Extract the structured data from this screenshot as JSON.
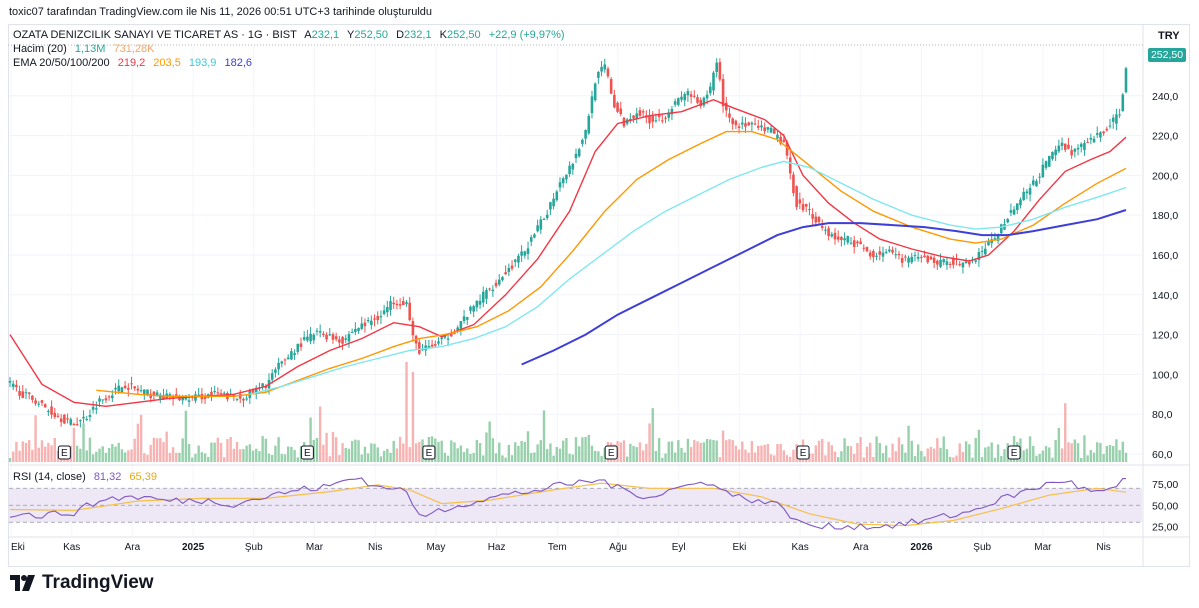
{
  "header": {
    "text": "toxic07 tarafından TradingView.com ile Nis 11, 2026 00:51 UTC+3 tarihinde oluşturuldu"
  },
  "legend": {
    "symbol": "OZATA DENIZCILIK SANAYI VE TICARET AS · 1G · BIST",
    "ohlc": {
      "o_label": "A",
      "o": "232,1",
      "h_label": "Y",
      "h": "252,50",
      "l_label": "D",
      "l": "232,1",
      "c_label": "K",
      "c": "252,50",
      "chg": "+22,9 (+9,97%)"
    },
    "volume": {
      "label": "Hacim (20)",
      "value": "1,13M",
      "ma": "731,28K"
    },
    "ema": {
      "label": "EMA 20/50/100/200",
      "v20": "219,2",
      "v50": "203,5",
      "v100": "193,9",
      "v200": "182,6"
    },
    "rsi": {
      "label": "RSI (14, close)",
      "value": "81,32",
      "ma": "65,39"
    }
  },
  "currency": "TRY",
  "last_price_tag": "252,50",
  "brand": "TradingView",
  "colors": {
    "up": "#26a69a",
    "down": "#ef5350",
    "volume_up": "#86c89e",
    "volume_down": "#f4a6a4",
    "ema20": "#f23645",
    "ema50": "#ff9800",
    "ema100": "#7fe7f0",
    "ema200": "#3e3ed8",
    "rsi_line": "#7e57c2",
    "rsi_ma": "#f7c04a",
    "rsi_band": "#ede7f6"
  },
  "chart_data": {
    "type": "candlestick",
    "title": "OZATA DENIZCILIK SANAYI VE TICARET AS · 1G · BIST",
    "price_axis": {
      "ticks": [
        "60,0",
        "80,0",
        "100,0",
        "120,0",
        "140,0",
        "160,0",
        "180,0",
        "200,0",
        "220,0",
        "240,0"
      ],
      "range": [
        56,
        265
      ]
    },
    "rsi_axis": {
      "ticks": [
        "25,00",
        "50,00",
        "75,00"
      ],
      "range": [
        15,
        95
      ],
      "band": [
        30,
        70
      ]
    },
    "time_axis": [
      "Eki",
      "Kas",
      "Ara",
      "2025",
      "Şub",
      "Mar",
      "Nis",
      "May",
      "Haz",
      "Tem",
      "Ağu",
      "Eyl",
      "Eki",
      "Kas",
      "Ara",
      "2026",
      "Şub",
      "Mar",
      "Nis"
    ],
    "earnings_markers": [
      "E",
      "E",
      "E",
      "E",
      "E",
      "E"
    ],
    "close_series": [
      [
        0,
        95
      ],
      [
        4,
        90
      ],
      [
        8,
        87
      ],
      [
        12,
        82
      ],
      [
        16,
        78
      ],
      [
        20,
        75
      ],
      [
        24,
        79
      ],
      [
        28,
        87
      ],
      [
        32,
        91
      ],
      [
        36,
        95
      ],
      [
        40,
        92
      ],
      [
        44,
        90
      ],
      [
        48,
        89
      ],
      [
        52,
        88
      ],
      [
        56,
        88
      ],
      [
        60,
        89
      ],
      [
        64,
        90
      ],
      [
        68,
        89
      ],
      [
        72,
        88
      ],
      [
        76,
        91
      ],
      [
        80,
        95
      ],
      [
        84,
        104
      ],
      [
        88,
        111
      ],
      [
        92,
        117
      ],
      [
        96,
        121
      ],
      [
        100,
        119
      ],
      [
        104,
        117
      ],
      [
        108,
        123
      ],
      [
        112,
        126
      ],
      [
        116,
        130
      ],
      [
        120,
        137
      ],
      [
        124,
        136
      ],
      [
        126,
        118
      ],
      [
        128,
        112
      ],
      [
        132,
        114
      ],
      [
        136,
        118
      ],
      [
        140,
        124
      ],
      [
        144,
        132
      ],
      [
        148,
        140
      ],
      [
        152,
        146
      ],
      [
        156,
        153
      ],
      [
        160,
        160
      ],
      [
        164,
        170
      ],
      [
        168,
        182
      ],
      [
        172,
        197
      ],
      [
        176,
        207
      ],
      [
        180,
        222
      ],
      [
        183,
        248
      ],
      [
        186,
        255
      ],
      [
        189,
        235
      ],
      [
        192,
        226
      ],
      [
        196,
        232
      ],
      [
        200,
        228
      ],
      [
        204,
        229
      ],
      [
        208,
        236
      ],
      [
        212,
        242
      ],
      [
        216,
        234
      ],
      [
        219,
        244
      ],
      [
        221,
        258
      ],
      [
        223,
        236
      ],
      [
        226,
        226
      ],
      [
        230,
        225
      ],
      [
        234,
        224
      ],
      [
        238,
        222
      ],
      [
        242,
        216
      ],
      [
        244,
        200
      ],
      [
        246,
        186
      ],
      [
        250,
        182
      ],
      [
        254,
        174
      ],
      [
        258,
        168
      ],
      [
        262,
        168
      ],
      [
        266,
        164
      ],
      [
        270,
        160
      ],
      [
        274,
        162
      ],
      [
        278,
        158
      ],
      [
        282,
        158
      ],
      [
        286,
        158
      ],
      [
        290,
        156
      ],
      [
        294,
        157
      ],
      [
        298,
        155
      ],
      [
        302,
        158
      ],
      [
        305,
        164
      ],
      [
        308,
        168
      ],
      [
        312,
        180
      ],
      [
        316,
        188
      ],
      [
        320,
        196
      ],
      [
        324,
        206
      ],
      [
        328,
        216
      ],
      [
        332,
        212
      ],
      [
        336,
        215
      ],
      [
        340,
        220
      ],
      [
        344,
        225
      ],
      [
        347,
        232
      ],
      [
        349,
        252.5
      ]
    ],
    "ema_20": [
      [
        0,
        120
      ],
      [
        10,
        95
      ],
      [
        20,
        86
      ],
      [
        30,
        84
      ],
      [
        40,
        86
      ],
      [
        50,
        88
      ],
      [
        60,
        89
      ],
      [
        70,
        90
      ],
      [
        80,
        94
      ],
      [
        90,
        104
      ],
      [
        100,
        112
      ],
      [
        110,
        118
      ],
      [
        120,
        126
      ],
      [
        128,
        124
      ],
      [
        135,
        119
      ],
      [
        145,
        125
      ],
      [
        155,
        140
      ],
      [
        165,
        158
      ],
      [
        175,
        182
      ],
      [
        183,
        212
      ],
      [
        190,
        226
      ],
      [
        200,
        230
      ],
      [
        210,
        232
      ],
      [
        220,
        238
      ],
      [
        226,
        234
      ],
      [
        236,
        228
      ],
      [
        242,
        220
      ],
      [
        248,
        200
      ],
      [
        256,
        186
      ],
      [
        264,
        176
      ],
      [
        272,
        168
      ],
      [
        282,
        163
      ],
      [
        292,
        159
      ],
      [
        300,
        157
      ],
      [
        306,
        160
      ],
      [
        314,
        172
      ],
      [
        322,
        188
      ],
      [
        330,
        202
      ],
      [
        338,
        208
      ],
      [
        344,
        212
      ],
      [
        349,
        219.2
      ]
    ],
    "ema_50": [
      [
        27,
        92
      ],
      [
        40,
        90
      ],
      [
        50,
        89
      ],
      [
        60,
        89
      ],
      [
        70,
        89
      ],
      [
        80,
        91
      ],
      [
        90,
        97
      ],
      [
        100,
        103
      ],
      [
        110,
        108
      ],
      [
        120,
        114
      ],
      [
        128,
        118
      ],
      [
        136,
        120
      ],
      [
        146,
        124
      ],
      [
        156,
        132
      ],
      [
        166,
        144
      ],
      [
        176,
        162
      ],
      [
        186,
        182
      ],
      [
        196,
        198
      ],
      [
        206,
        208
      ],
      [
        216,
        216
      ],
      [
        224,
        222
      ],
      [
        232,
        222
      ],
      [
        240,
        218
      ],
      [
        250,
        205
      ],
      [
        260,
        192
      ],
      [
        270,
        182
      ],
      [
        282,
        174
      ],
      [
        294,
        168
      ],
      [
        302,
        166
      ],
      [
        310,
        168
      ],
      [
        320,
        175
      ],
      [
        330,
        186
      ],
      [
        340,
        196
      ],
      [
        349,
        203.5
      ]
    ],
    "ema_100": [
      [
        75,
        90
      ],
      [
        85,
        94
      ],
      [
        95,
        99
      ],
      [
        105,
        104
      ],
      [
        115,
        108
      ],
      [
        125,
        112
      ],
      [
        135,
        114
      ],
      [
        145,
        118
      ],
      [
        155,
        124
      ],
      [
        165,
        134
      ],
      [
        175,
        148
      ],
      [
        185,
        160
      ],
      [
        195,
        172
      ],
      [
        205,
        182
      ],
      [
        215,
        190
      ],
      [
        225,
        198
      ],
      [
        235,
        204
      ],
      [
        242,
        207
      ],
      [
        250,
        204
      ],
      [
        260,
        196
      ],
      [
        270,
        188
      ],
      [
        282,
        180
      ],
      [
        294,
        175
      ],
      [
        302,
        173
      ],
      [
        310,
        174
      ],
      [
        320,
        178
      ],
      [
        330,
        184
      ],
      [
        340,
        189
      ],
      [
        349,
        193.9
      ]
    ],
    "ema_200": [
      [
        160,
        105
      ],
      [
        170,
        112
      ],
      [
        180,
        120
      ],
      [
        190,
        130
      ],
      [
        200,
        138
      ],
      [
        210,
        146
      ],
      [
        220,
        154
      ],
      [
        230,
        162
      ],
      [
        240,
        170
      ],
      [
        248,
        174
      ],
      [
        256,
        176
      ],
      [
        266,
        176
      ],
      [
        276,
        175
      ],
      [
        286,
        174
      ],
      [
        296,
        172
      ],
      [
        304,
        170
      ],
      [
        312,
        170
      ],
      [
        320,
        172
      ],
      [
        330,
        175
      ],
      [
        340,
        178
      ],
      [
        349,
        182.6
      ]
    ],
    "rsi_series": [
      [
        0,
        40
      ],
      [
        10,
        38
      ],
      [
        20,
        42
      ],
      [
        30,
        58
      ],
      [
        40,
        60
      ],
      [
        50,
        55
      ],
      [
        60,
        56
      ],
      [
        70,
        52
      ],
      [
        80,
        60
      ],
      [
        90,
        68
      ],
      [
        100,
        72
      ],
      [
        105,
        80
      ],
      [
        110,
        82
      ],
      [
        115,
        70
      ],
      [
        120,
        72
      ],
      [
        125,
        62
      ],
      [
        128,
        35
      ],
      [
        135,
        45
      ],
      [
        145,
        55
      ],
      [
        155,
        62
      ],
      [
        165,
        68
      ],
      [
        175,
        75
      ],
      [
        185,
        80
      ],
      [
        190,
        70
      ],
      [
        200,
        60
      ],
      [
        210,
        72
      ],
      [
        220,
        78
      ],
      [
        225,
        62
      ],
      [
        235,
        55
      ],
      [
        242,
        48
      ],
      [
        246,
        30
      ],
      [
        254,
        24
      ],
      [
        262,
        26
      ],
      [
        270,
        25
      ],
      [
        280,
        28
      ],
      [
        290,
        35
      ],
      [
        300,
        42
      ],
      [
        306,
        52
      ],
      [
        314,
        62
      ],
      [
        322,
        72
      ],
      [
        330,
        80
      ],
      [
        336,
        68
      ],
      [
        342,
        65
      ],
      [
        346,
        70
      ],
      [
        349,
        81.32
      ]
    ],
    "rsi_ma_series": [
      [
        0,
        45
      ],
      [
        20,
        44
      ],
      [
        40,
        55
      ],
      [
        60,
        58
      ],
      [
        80,
        58
      ],
      [
        100,
        66
      ],
      [
        115,
        74
      ],
      [
        125,
        68
      ],
      [
        135,
        52
      ],
      [
        150,
        56
      ],
      [
        170,
        68
      ],
      [
        185,
        76
      ],
      [
        200,
        70
      ],
      [
        220,
        70
      ],
      [
        235,
        60
      ],
      [
        250,
        40
      ],
      [
        265,
        28
      ],
      [
        280,
        26
      ],
      [
        295,
        32
      ],
      [
        310,
        46
      ],
      [
        325,
        62
      ],
      [
        340,
        70
      ],
      [
        349,
        65.39
      ]
    ]
  }
}
